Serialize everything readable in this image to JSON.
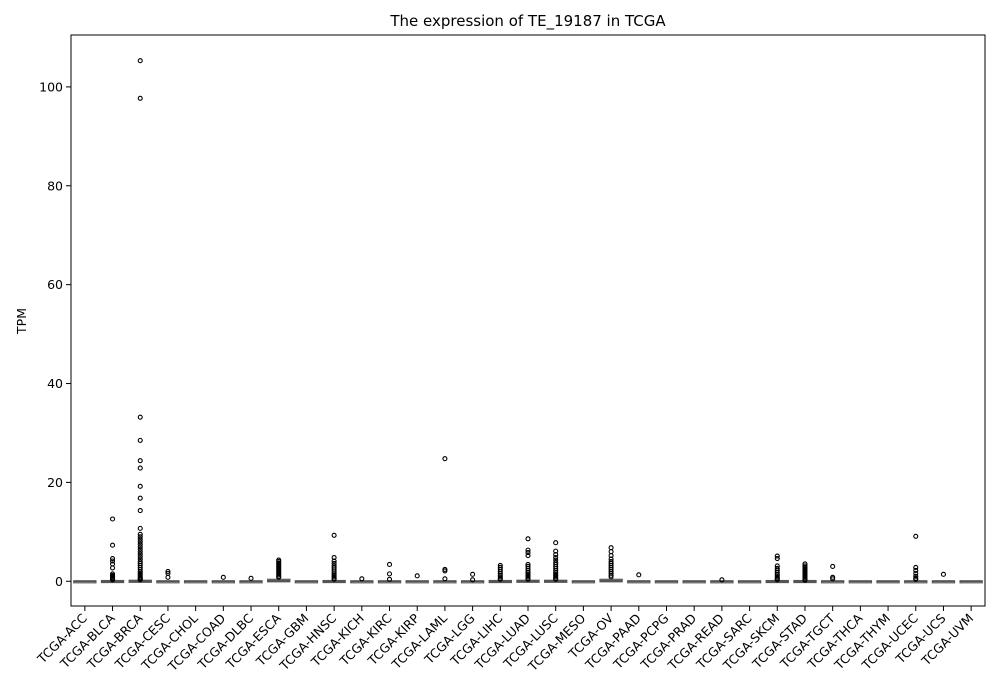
{
  "chart_data": {
    "type": "box",
    "title": "The expression of TE_19187 in TCGA",
    "xlabel": "",
    "ylabel": "TPM",
    "ylim": [
      -5,
      110.5
    ],
    "yticks": [
      0,
      20,
      40,
      60,
      80,
      100
    ],
    "grid": false,
    "legend": "none",
    "colors": {
      "box": "#555555",
      "outlier": "#000000",
      "axis": "#000000"
    },
    "categories": [
      "TCGA-ACC",
      "TCGA-BLCA",
      "TCGA-BRCA",
      "TCGA-CESC",
      "TCGA-CHOL",
      "TCGA-COAD",
      "TCGA-DLBC",
      "TCGA-ESCA",
      "TCGA-GBM",
      "TCGA-HNSC",
      "TCGA-KICH",
      "TCGA-KIRC",
      "TCGA-KIRP",
      "TCGA-LAML",
      "TCGA-LGG",
      "TCGA-LIHC",
      "TCGA-LUAD",
      "TCGA-LUSC",
      "TCGA-MESO",
      "TCGA-OV",
      "TCGA-PAAD",
      "TCGA-PCPG",
      "TCGA-PRAD",
      "TCGA-READ",
      "TCGA-SARC",
      "TCGA-SKCM",
      "TCGA-STAD",
      "TCGA-TGCT",
      "TCGA-THCA",
      "TCGA-THYM",
      "TCGA-UCEC",
      "TCGA-UCS",
      "TCGA-UVM"
    ],
    "boxes": [
      {
        "q1": 0,
        "median": 0,
        "q3": 0,
        "whisker_low": 0,
        "whisker_high": 0,
        "outliers": []
      },
      {
        "q1": 0,
        "median": 0,
        "q3": 0.05,
        "whisker_low": 0,
        "whisker_high": 0.1,
        "outliers": [
          12.6,
          7.3,
          4.6,
          4.1,
          3.5,
          2.7,
          1.5,
          1.2,
          1.0,
          0.8,
          0.6,
          0.5,
          0.4,
          0.3
        ]
      },
      {
        "q1": 0,
        "median": 0,
        "q3": 0.1,
        "whisker_low": 0,
        "whisker_high": 0.2,
        "outliers": [
          105.3,
          97.7,
          33.2,
          28.5,
          24.4,
          22.9,
          19.2,
          16.8,
          14.3,
          10.7,
          9.5,
          9.0,
          8.5,
          8.0,
          7.5,
          7.0,
          6.5,
          6.0,
          5.5,
          5.0,
          4.5,
          4.0,
          3.6,
          3.2,
          2.8,
          2.4,
          2.0,
          1.7,
          1.4,
          1.1,
          0.8,
          0.6,
          0.4,
          0.3
        ]
      },
      {
        "q1": 0,
        "median": 0,
        "q3": 0,
        "whisker_low": 0,
        "whisker_high": 0,
        "outliers": [
          2.0,
          1.6,
          0.8
        ]
      },
      {
        "q1": 0,
        "median": 0,
        "q3": 0,
        "whisker_low": 0,
        "whisker_high": 0,
        "outliers": []
      },
      {
        "q1": 0,
        "median": 0,
        "q3": 0,
        "whisker_low": 0,
        "whisker_high": 0,
        "outliers": [
          0.8
        ]
      },
      {
        "q1": 0,
        "median": 0,
        "q3": 0,
        "whisker_low": 0,
        "whisker_high": 0,
        "outliers": [
          0.6
        ]
      },
      {
        "q1": 0,
        "median": 0.1,
        "q3": 0.3,
        "whisker_low": 0,
        "whisker_high": 0.5,
        "outliers": [
          4.3,
          4.0,
          3.7,
          3.4,
          3.1,
          2.8,
          2.5,
          2.2,
          1.9,
          1.6,
          1.3,
          1.0,
          0.8
        ]
      },
      {
        "q1": 0,
        "median": 0,
        "q3": 0,
        "whisker_low": 0,
        "whisker_high": 0,
        "outliers": []
      },
      {
        "q1": 0,
        "median": 0,
        "q3": 0.05,
        "whisker_low": 0,
        "whisker_high": 0.1,
        "outliers": [
          9.3,
          4.8,
          4.1,
          3.6,
          3.1,
          2.7,
          2.3,
          1.9,
          1.5,
          1.2,
          0.9,
          0.6,
          0.4
        ]
      },
      {
        "q1": 0,
        "median": 0,
        "q3": 0,
        "whisker_low": 0,
        "whisker_high": 0,
        "outliers": [
          0.5
        ]
      },
      {
        "q1": 0,
        "median": 0,
        "q3": 0,
        "whisker_low": 0,
        "whisker_high": 0,
        "outliers": [
          3.4,
          1.5,
          0.4
        ]
      },
      {
        "q1": 0,
        "median": 0,
        "q3": 0,
        "whisker_low": 0,
        "whisker_high": 0,
        "outliers": [
          1.1
        ]
      },
      {
        "q1": 0,
        "median": 0,
        "q3": 0,
        "whisker_low": 0,
        "whisker_high": 0,
        "outliers": [
          24.8,
          2.4,
          2.1,
          0.5
        ]
      },
      {
        "q1": 0,
        "median": 0,
        "q3": 0,
        "whisker_low": 0,
        "whisker_high": 0,
        "outliers": [
          1.4,
          0.3
        ]
      },
      {
        "q1": 0,
        "median": 0,
        "q3": 0.05,
        "whisker_low": 0,
        "whisker_high": 0.1,
        "outliers": [
          3.2,
          2.8,
          2.4,
          2.0,
          1.6,
          1.2,
          0.9,
          0.6,
          0.4
        ]
      },
      {
        "q1": 0,
        "median": 0,
        "q3": 0.1,
        "whisker_low": 0,
        "whisker_high": 0.2,
        "outliers": [
          8.6,
          6.3,
          5.8,
          5.2,
          3.4,
          3.0,
          2.6,
          2.2,
          1.8,
          1.5,
          1.2,
          0.9,
          0.6,
          0.4
        ]
      },
      {
        "q1": 0,
        "median": 0,
        "q3": 0.1,
        "whisker_low": 0,
        "whisker_high": 0.2,
        "outliers": [
          7.8,
          6.1,
          5.4,
          4.8,
          4.3,
          3.8,
          3.4,
          3.0,
          2.6,
          2.2,
          1.8,
          1.5,
          1.2,
          0.9,
          0.6,
          0.4
        ]
      },
      {
        "q1": 0,
        "median": 0,
        "q3": 0,
        "whisker_low": 0,
        "whisker_high": 0,
        "outliers": []
      },
      {
        "q1": 0,
        "median": 0.1,
        "q3": 0.3,
        "whisker_low": 0,
        "whisker_high": 0.6,
        "outliers": [
          6.8,
          6.0,
          5.2,
          4.5,
          4.0,
          3.6,
          3.2,
          2.8,
          2.4,
          2.0,
          1.6,
          1.2,
          0.9
        ]
      },
      {
        "q1": 0,
        "median": 0,
        "q3": 0,
        "whisker_low": 0,
        "whisker_high": 0,
        "outliers": [
          1.3
        ]
      },
      {
        "q1": 0,
        "median": 0,
        "q3": 0,
        "whisker_low": 0,
        "whisker_high": 0,
        "outliers": []
      },
      {
        "q1": 0,
        "median": 0,
        "q3": 0,
        "whisker_low": 0,
        "whisker_high": 0,
        "outliers": []
      },
      {
        "q1": 0,
        "median": 0,
        "q3": 0,
        "whisker_low": 0,
        "whisker_high": 0,
        "outliers": [
          0.3
        ]
      },
      {
        "q1": 0,
        "median": 0,
        "q3": 0,
        "whisker_low": 0,
        "whisker_high": 0,
        "outliers": []
      },
      {
        "q1": 0,
        "median": 0,
        "q3": 0.05,
        "whisker_low": 0,
        "whisker_high": 0.1,
        "outliers": [
          5.1,
          4.6,
          3.1,
          2.6,
          2.2,
          1.8,
          1.4,
          1.1,
          0.8,
          0.5,
          0.3
        ]
      },
      {
        "q1": 0,
        "median": 0,
        "q3": 0.05,
        "whisker_low": 0,
        "whisker_high": 0.1,
        "outliers": [
          3.5,
          3.1,
          2.8,
          2.5,
          2.2,
          1.9,
          1.6,
          1.3,
          1.0,
          0.7,
          0.4,
          0.2
        ]
      },
      {
        "q1": 0,
        "median": 0,
        "q3": 0,
        "whisker_low": 0,
        "whisker_high": 0,
        "outliers": [
          3.0,
          0.8,
          0.5
        ]
      },
      {
        "q1": 0,
        "median": 0,
        "q3": 0,
        "whisker_low": 0,
        "whisker_high": 0,
        "outliers": []
      },
      {
        "q1": 0,
        "median": 0,
        "q3": 0,
        "whisker_low": 0,
        "whisker_high": 0,
        "outliers": []
      },
      {
        "q1": 0,
        "median": 0,
        "q3": 0,
        "whisker_low": 0,
        "whisker_high": 0,
        "outliers": [
          9.1,
          2.8,
          2.2,
          1.6,
          1.0,
          0.6,
          0.4
        ]
      },
      {
        "q1": 0,
        "median": 0,
        "q3": 0,
        "whisker_low": 0,
        "whisker_high": 0,
        "outliers": [
          1.4
        ]
      },
      {
        "q1": 0,
        "median": 0,
        "q3": 0,
        "whisker_low": 0,
        "whisker_high": 0,
        "outliers": []
      }
    ]
  }
}
